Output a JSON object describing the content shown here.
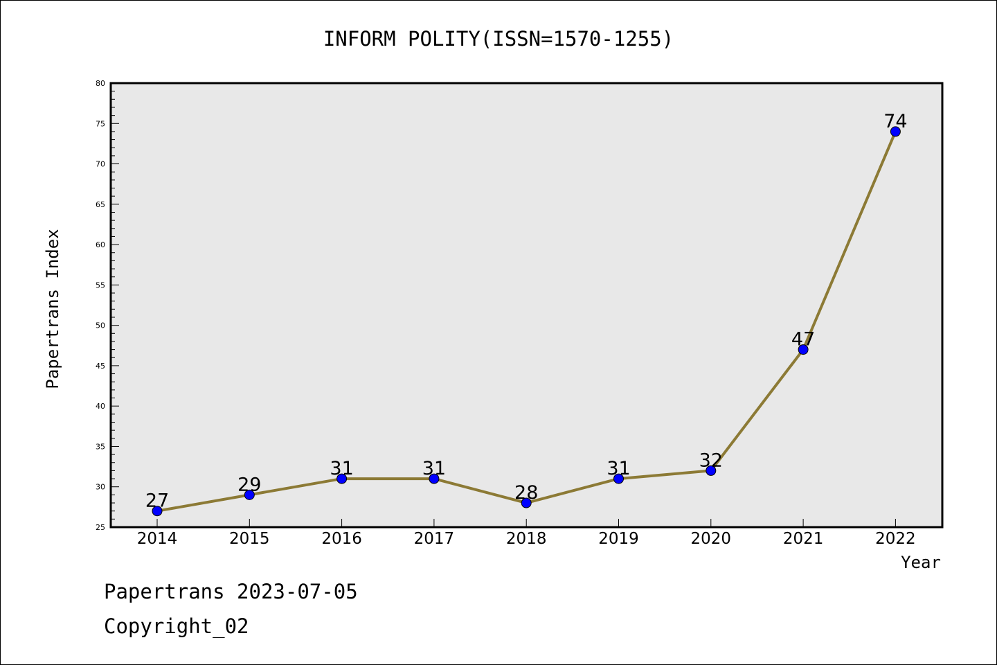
{
  "chart_data": {
    "type": "line",
    "title": "INFORM POLITY(ISSN=1570-1255)",
    "xlabel": "Year",
    "ylabel": "Papertrans Index",
    "x": [
      "2014",
      "2015",
      "2016",
      "2017",
      "2018",
      "2019",
      "2020",
      "2021",
      "2022"
    ],
    "series": [
      {
        "values": [
          27,
          29,
          31,
          31,
          28,
          31,
          32,
          47,
          74
        ]
      }
    ],
    "data_labels": [
      "27",
      "29",
      "31",
      "31",
      "28",
      "31",
      "32",
      "47",
      "74"
    ],
    "ylim": [
      25,
      80
    ],
    "yticks": [
      "25",
      "30",
      "35",
      "40",
      "45",
      "50",
      "55",
      "60",
      "65",
      "70",
      "75",
      "80"
    ],
    "grid": false,
    "legend": "none",
    "colors": {
      "line": "#8c7a35",
      "marker": "#0000ff",
      "plot_background": "#e8e8e8"
    }
  },
  "footer": {
    "line1": "Papertrans 2023-07-05",
    "line2": "Copyright_02"
  }
}
